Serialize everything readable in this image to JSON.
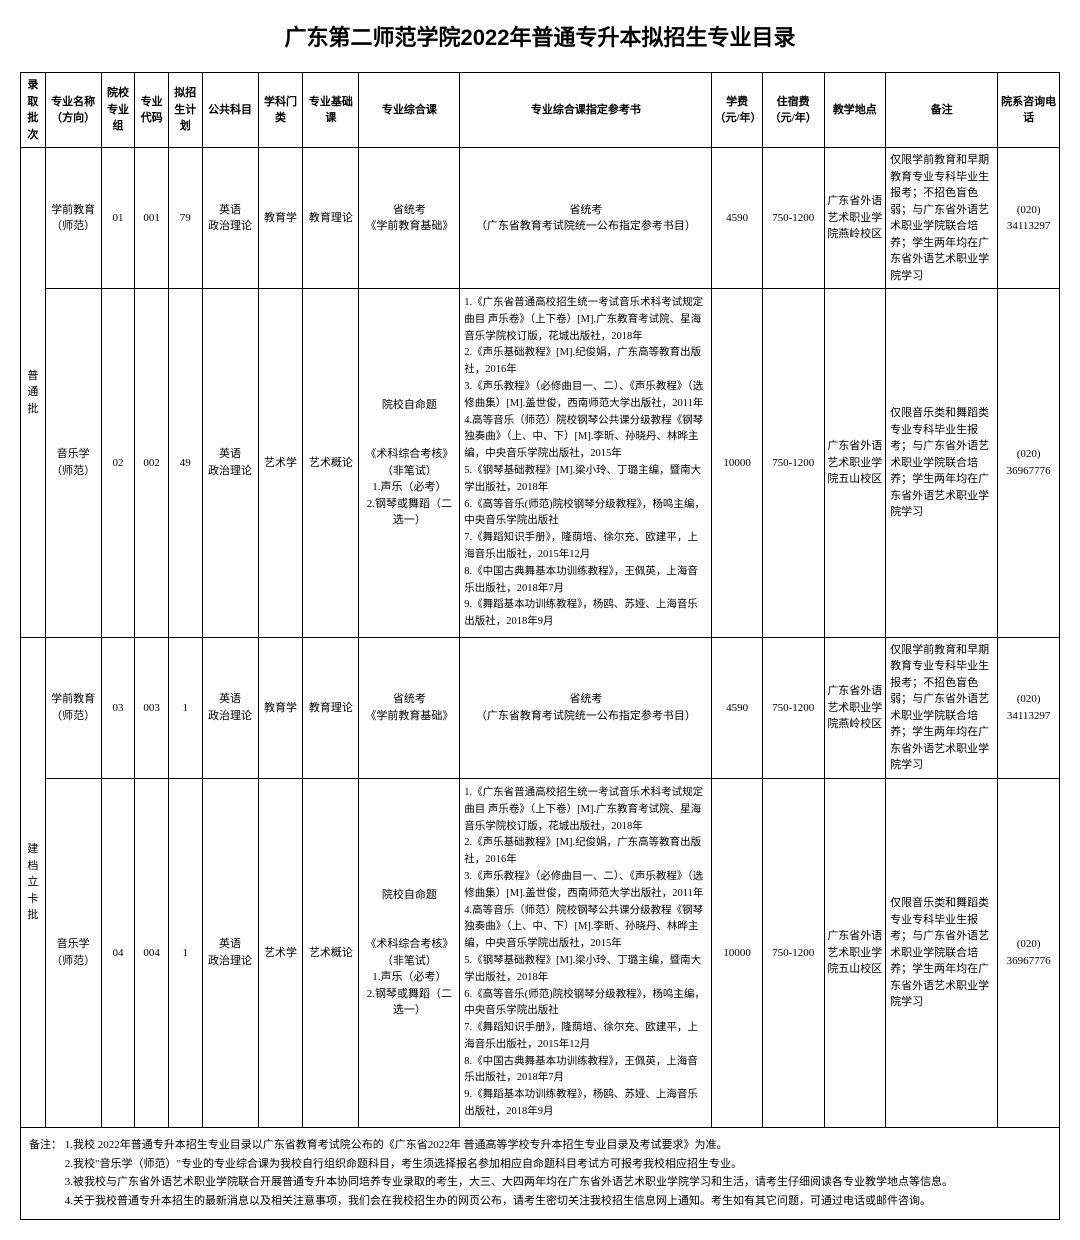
{
  "title": "广东第二师范学院2022年普通专升本拟招生专业目录",
  "headers": {
    "batch": "录取批次",
    "major": "专业名称（方向）",
    "group": "院校专业组",
    "code": "专业代码",
    "plan": "拟招生计划",
    "public": "公共科目",
    "category": "学科门类",
    "basic": "专业基础课",
    "comp": "专业综合课",
    "ref": "专业综合课指定参考书",
    "fee": "学费（元/年）",
    "accom": "住宿费（元/年）",
    "loc": "教学地点",
    "note": "备注",
    "phone": "院系咨询电话"
  },
  "batches": {
    "b1": "普通批",
    "b2": "建档立卡批"
  },
  "rows": {
    "r1": {
      "major": "学前教育（师范）",
      "group": "01",
      "code": "001",
      "plan": "79",
      "public": "英语\n政治理论",
      "category": "教育学",
      "basic": "教育理论",
      "comp": "省统考\n《学前教育基础》",
      "ref": "省统考\n（广东省教育考试院统一公布指定参考书目）",
      "fee": "4590",
      "accom": "750-1200",
      "loc": "广东省外语艺术职业学院燕岭校区",
      "note": "仅限学前教育和早期教育专业专科毕业生报考；不招色盲色弱；与广东省外语艺术职业学院联合培养；学生两年均在广东省外语艺术职业学院学习",
      "phone": "(020)\n34113297"
    },
    "r2": {
      "major": "音乐学（师范）",
      "group": "02",
      "code": "002",
      "plan": "49",
      "public": "英语\n政治理论",
      "category": "艺术学",
      "basic": "艺术概论",
      "comp": "院校自命题\n\n《术科综合考核》（非笔试）\n1.声乐（必考）\n2.钢琴或舞蹈（二选一）",
      "ref": "1.《广东省普通高校招生统一考试音乐术科考试规定曲目 声乐卷》（上下卷）[M].广东教育考试院、星海音乐学院校订版，花城出版社，2018年\n2.《声乐基础教程》[M].纪俊娟，广东高等教育出版社，2016年\n3.《声乐教程》（必修曲目一、二）、《声乐教程》（选修曲集）[M].盖世俊，西南师范大学出版社，2011年\n4.高等音乐（师范）院校钢琴公共课分级教程《钢琴独奏曲》（上、中、下）[M].李昕、孙晓丹、林晔主编，中央音乐学院出版社，2015年\n5.《钢琴基础教程》[M].梁小玲、丁璐主编，暨南大学出版社，2018年\n6.《高等音乐(师范)院校钢琴分级教程》，杨鸣主编，中央音乐学院出版社\n7.《舞蹈知识手册》，隆荫培、徐尔充、欧建平，上海音乐出版社，2015年12月\n8.《中国古典舞基本功训练教程》，王佩英，上海音乐出版社，2018年7月\n9.《舞蹈基本功训练教程》，杨鸥、苏娅、上海音乐出版社，2018年9月",
      "fee": "10000",
      "accom": "750-1200",
      "loc": "广东省外语艺术职业学院五山校区",
      "note": "仅限音乐类和舞蹈类专业专科毕业生报考；与广东省外语艺术职业学院联合培养；学生两年均在广东省外语艺术职业学院学习",
      "phone": "(020)\n36967776"
    },
    "r3": {
      "major": "学前教育（师范）",
      "group": "03",
      "code": "003",
      "plan": "1",
      "public": "英语\n政治理论",
      "category": "教育学",
      "basic": "教育理论",
      "comp": "省统考\n《学前教育基础》",
      "ref": "省统考\n（广东省教育考试院统一公布指定参考书目）",
      "fee": "4590",
      "accom": "750-1200",
      "loc": "广东省外语艺术职业学院燕岭校区",
      "note": "仅限学前教育和早期教育专业专科毕业生报考；不招色盲色弱；与广东省外语艺术职业学院联合培养；学生两年均在广东省外语艺术职业学院学习",
      "phone": "(020)\n34113297"
    },
    "r4": {
      "major": "音乐学（师范）",
      "group": "04",
      "code": "004",
      "plan": "1",
      "public": "英语\n政治理论",
      "category": "艺术学",
      "basic": "艺术概论",
      "comp": "院校自命题\n\n《术科综合考核》（非笔试）\n1.声乐（必考）\n2.钢琴或舞蹈（二选一）",
      "ref": "1.《广东省普通高校招生统一考试音乐术科考试规定曲目 声乐卷》（上下卷）[M].广东教育考试院、星海音乐学院校订版，花城出版社，2018年\n2.《声乐基础教程》[M].纪俊娟，广东高等教育出版社，2016年\n3.《声乐教程》（必修曲目一、二）、《声乐教程》（选修曲集）[M].盖世俊，西南师范大学出版社，2011年\n4.高等音乐（师范）院校钢琴公共课分级教程《钢琴独奏曲》（上、中、下）[M].李昕、孙晓丹、林晔主编，中央音乐学院出版社，2015年\n5.《钢琴基础教程》[M].梁小玲、丁璐主编，暨南大学出版社，2018年\n6.《高等音乐(师范)院校钢琴分级教程》，杨鸣主编，中央音乐学院出版社\n7.《舞蹈知识手册》，隆荫培、徐尔充、欧建平，上海音乐出版社，2015年12月\n8.《中国古典舞基本功训练教程》，王佩英，上海音乐出版社，2018年7月\n9.《舞蹈基本功训练教程》，杨鸥、苏娅、上海音乐出版社，2018年9月",
      "fee": "10000",
      "accom": "750-1200",
      "loc": "广东省外语艺术职业学院五山校区",
      "note": "仅限音乐类和舞蹈类专业专科毕业生报考；与广东省外语艺术职业学院联合培养；学生两年均在广东省外语艺术职业学院学习",
      "phone": "(020)\n36967776"
    }
  },
  "footnote": {
    "label": "备注：",
    "items": {
      "f1": "1.我校 2022年普通专升本招生专业目录以广东省教育考试院公布的《广东省2022年 普通高等学校专升本招生专业目录及考试要求》为准。",
      "f2": "2.我校\"音乐学（师范）\"专业的专业综合课为我校自行组织命题科目，考生须选择报名参加相应自命题科目考试方可报考我校相应招生专业。",
      "f3": "3.被我校与广东省外语艺术职业学院联合开展普通专升本协同培养专业录取的考生，大三、大四两年均在广东省外语艺术职业学院学习和生活，请考生仔细阅读各专业教学地点等信息。",
      "f4": "4.关于我校普通专升本招生的最新消息以及相关注意事项，我们会在我校招生办的网页公布，请考生密切关注我校招生信息网上通知。考生如有其它问题，可通过电话或邮件咨询。"
    }
  }
}
